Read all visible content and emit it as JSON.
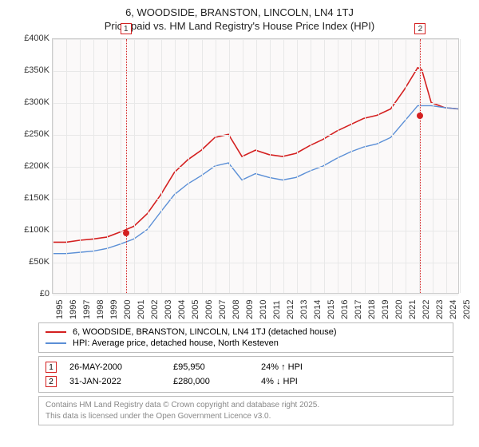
{
  "title": "6, WOODSIDE, BRANSTON, LINCOLN, LN4 1TJ",
  "subtitle": "Price paid vs. HM Land Registry's House Price Index (HPI)",
  "chart": {
    "type": "line",
    "background_color": "#fbf9f9",
    "grid_color": "#e8e8e8",
    "border_color": "#cccccc",
    "ylim": [
      0,
      400000
    ],
    "ytick_step": 50000,
    "yticks": [
      "£0",
      "£50K",
      "£100K",
      "£150K",
      "£200K",
      "£250K",
      "£300K",
      "£350K",
      "£400K"
    ],
    "xlim": [
      1995,
      2025
    ],
    "xticks": [
      1995,
      1996,
      1997,
      1998,
      1999,
      2000,
      2001,
      2002,
      2003,
      2004,
      2005,
      2006,
      2007,
      2008,
      2009,
      2010,
      2011,
      2012,
      2013,
      2014,
      2015,
      2016,
      2017,
      2018,
      2019,
      2020,
      2021,
      2022,
      2023,
      2024,
      2025
    ],
    "series": [
      {
        "name": "subject",
        "label": "6, WOODSIDE, BRANSTON, LINCOLN, LN4 1TJ (detached house)",
        "color": "#d42020",
        "width": 1.6,
        "x": [
          1995,
          1996,
          1997,
          1998,
          1999,
          2000,
          2001,
          2002,
          2003,
          2004,
          2005,
          2006,
          2007,
          2008,
          2009,
          2010,
          2011,
          2012,
          2013,
          2014,
          2015,
          2016,
          2017,
          2018,
          2019,
          2020,
          2021,
          2022,
          2022.3,
          2023,
          2024,
          2025
        ],
        "y": [
          80000,
          80000,
          83000,
          85000,
          88000,
          95950,
          105000,
          125000,
          155000,
          190000,
          210000,
          225000,
          245000,
          250000,
          215000,
          225000,
          218000,
          215000,
          220000,
          232000,
          242000,
          255000,
          265000,
          275000,
          280000,
          290000,
          320000,
          355000,
          352000,
          300000,
          292000,
          290000
        ]
      },
      {
        "name": "hpi",
        "label": "HPI: Average price, detached house, North Kesteven",
        "color": "#5b8fd6",
        "width": 1.4,
        "x": [
          1995,
          1996,
          1997,
          1998,
          1999,
          2000,
          2001,
          2002,
          2003,
          2004,
          2005,
          2006,
          2007,
          2008,
          2009,
          2010,
          2011,
          2012,
          2013,
          2014,
          2015,
          2016,
          2017,
          2018,
          2019,
          2020,
          2021,
          2022,
          2023,
          2024,
          2025
        ],
        "y": [
          62000,
          62000,
          64000,
          66000,
          70000,
          77000,
          85000,
          100000,
          128000,
          155000,
          172000,
          185000,
          200000,
          205000,
          178000,
          188000,
          182000,
          178000,
          182000,
          192000,
          200000,
          212000,
          222000,
          230000,
          235000,
          245000,
          270000,
          295000,
          295000,
          292000,
          290000
        ]
      }
    ],
    "reference_lines": [
      {
        "id": "1",
        "x": 2000.4,
        "color": "#d42020"
      },
      {
        "id": "2",
        "x": 2022.08,
        "color": "#d42020"
      }
    ],
    "markers": [
      {
        "x": 2000.4,
        "y": 95950,
        "color": "#d42020"
      },
      {
        "x": 2022.08,
        "y": 280000,
        "color": "#d42020"
      }
    ]
  },
  "legend": {
    "items": [
      {
        "color": "#d42020",
        "label": "6, WOODSIDE, BRANSTON, LINCOLN, LN4 1TJ (detached house)"
      },
      {
        "color": "#5b8fd6",
        "label": "HPI: Average price, detached house, North Kesteven"
      }
    ]
  },
  "sales": [
    {
      "id": "1",
      "badge_color": "#d42020",
      "date": "26-MAY-2000",
      "price": "£95,950",
      "delta": "24% ↑ HPI"
    },
    {
      "id": "2",
      "badge_color": "#d42020",
      "date": "31-JAN-2022",
      "price": "£280,000",
      "delta": "4% ↓ HPI"
    }
  ],
  "footer_line1": "Contains HM Land Registry data © Crown copyright and database right 2025.",
  "footer_line2": "This data is licensed under the Open Government Licence v3.0."
}
